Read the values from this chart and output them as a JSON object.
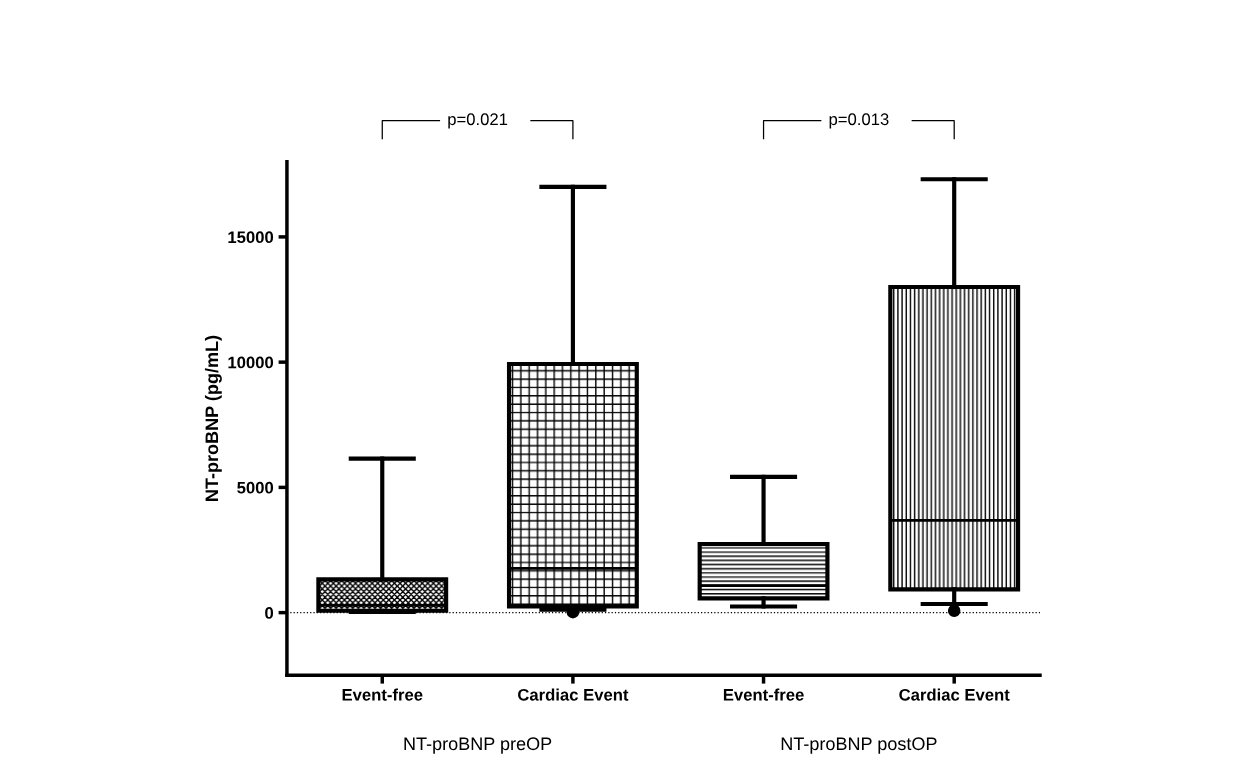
{
  "chart_data": {
    "type": "box",
    "ylabel": "NT-proBNP (pg/mL)",
    "categories": [
      "Event-free",
      "Cardiac Event",
      "Event-free",
      "Cardiac Event"
    ],
    "boxes": [
      {
        "low": 30,
        "q1": 75,
        "median": 290,
        "q3": 1330,
        "high": 6150
      },
      {
        "low": 115,
        "q1": 245,
        "median": 1770,
        "q3": 9925,
        "high": 17000,
        "outliers": [
          20
        ]
      },
      {
        "low": 245,
        "q1": 570,
        "median": 1080,
        "q3": 2740,
        "high": 5420
      },
      {
        "low": 345,
        "q1": 930,
        "median": 3680,
        "q3": 13000,
        "high": 17300,
        "outliers": [
          75
        ]
      }
    ],
    "color": "#000000",
    "ylim": [
      -2500,
      18000
    ],
    "yticks": [
      0,
      5000,
      10000,
      15000
    ],
    "ref_lines": [
      {
        "axis": "y",
        "value": 0,
        "line_style": "dotted",
        "color": "#000000"
      }
    ],
    "annotations": [
      "NT-proBNP preOP",
      "NT-proBNP postOP",
      "p=0.021",
      "p=0.013"
    ],
    "grid": false,
    "legend": false
  }
}
